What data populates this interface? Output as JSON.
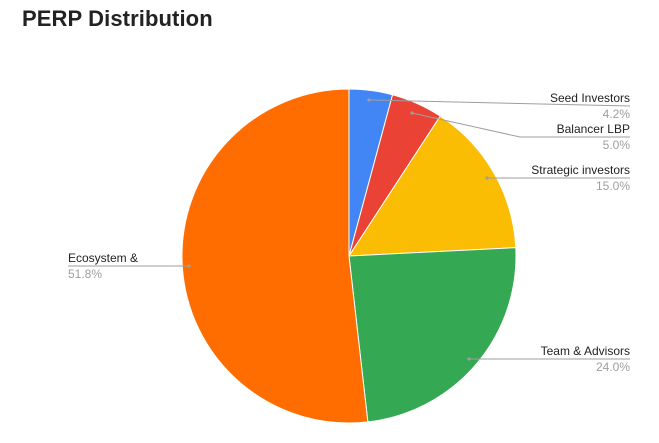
{
  "chart_data": {
    "type": "pie",
    "title": "PERP Distribution",
    "slices": [
      {
        "label": "Seed Investors",
        "value": 4.2,
        "value_label": "4.2%",
        "color": "#4285f4"
      },
      {
        "label": "Balancer LBP",
        "value": 5.0,
        "value_label": "5.0%",
        "color": "#ea4335"
      },
      {
        "label": "Strategic investors",
        "value": 15.0,
        "value_label": "15.0%",
        "color": "#fbbc04"
      },
      {
        "label": "Team & Advisors",
        "value": 24.0,
        "value_label": "24.0%",
        "color": "#34a853"
      },
      {
        "label": "Ecosystem &",
        "value": 51.8,
        "value_label": "51.8%",
        "color": "#ff6d01"
      }
    ],
    "start_angle": "12 o'clock",
    "direction": "clockwise",
    "legend": "none",
    "label_style": "callout lines with name and percent"
  }
}
